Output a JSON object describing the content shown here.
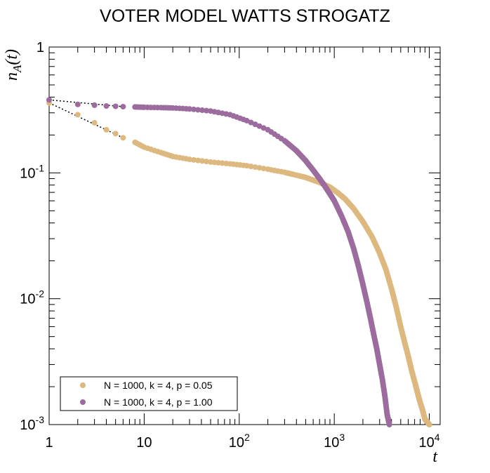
{
  "chart_data": {
    "type": "scatter",
    "title": "VOTER MODEL WATTS STROGATZ",
    "xlabel": "t",
    "ylabel": "n_A(t)",
    "xscale": "log",
    "yscale": "log",
    "xlim": [
      1,
      13000
    ],
    "ylim": [
      0.001,
      1
    ],
    "grid": false,
    "legend_position": "bottom-left",
    "x_tick_labels": [
      "1",
      "10",
      "10^2",
      "10^3",
      "10^4"
    ],
    "y_tick_labels": [
      "10^-3",
      "10^-2",
      "10^-1",
      "1"
    ],
    "series": [
      {
        "name": "N = 1000, k = 4, p = 0.05",
        "color": "#ddb87f",
        "x": [
          1,
          2,
          3,
          4,
          5,
          6,
          8,
          10,
          15,
          20,
          30,
          50,
          80,
          120,
          200,
          300,
          500,
          700,
          900,
          1100,
          1300,
          1600,
          2000,
          2500,
          3000,
          3500,
          4000,
          4500,
          5000,
          5500,
          6000,
          6500,
          7000,
          7500,
          8000,
          8500,
          9000,
          9500,
          10000
        ],
        "y": [
          0.36,
          0.29,
          0.25,
          0.22,
          0.205,
          0.19,
          0.175,
          0.16,
          0.145,
          0.135,
          0.128,
          0.122,
          0.118,
          0.114,
          0.107,
          0.101,
          0.092,
          0.084,
          0.077,
          0.069,
          0.062,
          0.052,
          0.041,
          0.031,
          0.023,
          0.017,
          0.012,
          0.0085,
          0.006,
          0.0045,
          0.0035,
          0.0027,
          0.0022,
          0.0018,
          0.0015,
          0.0013,
          0.0011,
          0.00105,
          0.001
        ]
      },
      {
        "name": "N = 1000, k = 4, p = 1.00",
        "color": "#9c6c9e",
        "x": [
          1,
          2,
          3,
          4,
          5,
          6,
          8,
          10,
          15,
          20,
          30,
          50,
          80,
          120,
          200,
          300,
          400,
          500,
          600,
          700,
          800,
          900,
          1000,
          1200,
          1400,
          1600,
          1800,
          2000,
          2200,
          2400,
          2600,
          2800,
          3000,
          3200,
          3400,
          3600,
          3800
        ],
        "y": [
          0.38,
          0.35,
          0.345,
          0.34,
          0.338,
          0.336,
          0.334,
          0.332,
          0.33,
          0.328,
          0.322,
          0.31,
          0.29,
          0.26,
          0.22,
          0.18,
          0.15,
          0.125,
          0.105,
          0.09,
          0.078,
          0.068,
          0.06,
          0.045,
          0.034,
          0.025,
          0.018,
          0.013,
          0.0095,
          0.007,
          0.0052,
          0.004,
          0.003,
          0.0023,
          0.0017,
          0.0012,
          0.001
        ]
      }
    ]
  }
}
